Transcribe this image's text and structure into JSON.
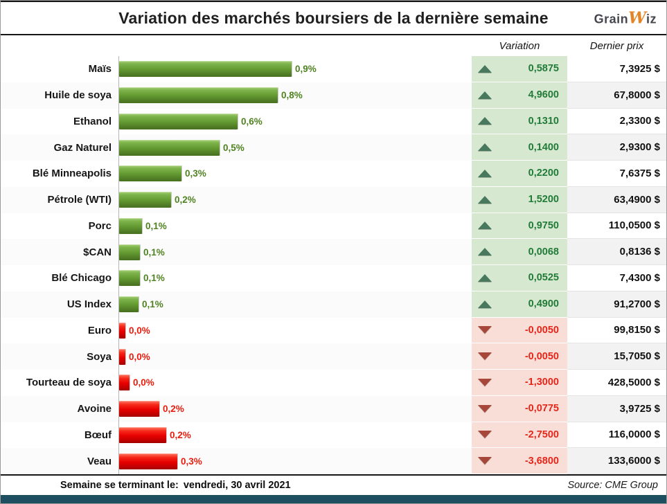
{
  "header": {
    "title": "Variation des marchés boursiers de la dernière semaine",
    "logo": {
      "part1": "Grain",
      "part2": "W",
      "part3": "iz"
    }
  },
  "columns": {
    "variation": "Variation",
    "price": "Dernier prix"
  },
  "rows": [
    {
      "label": "Maïs",
      "pct": "0,9%",
      "direction": "up",
      "bar_len": 8.6,
      "variation": "0,5875",
      "price": "7,3925 $"
    },
    {
      "label": "Huile de soya",
      "pct": "0,8%",
      "direction": "up",
      "bar_len": 7.9,
      "variation": "4,9600",
      "price": "67,8000 $"
    },
    {
      "label": "Ethanol",
      "pct": "0,6%",
      "direction": "up",
      "bar_len": 5.9,
      "variation": "0,1310",
      "price": "2,3300 $"
    },
    {
      "label": "Gaz Naturel",
      "pct": "0,5%",
      "direction": "up",
      "bar_len": 5.0,
      "variation": "0,1400",
      "price": "2,9300 $"
    },
    {
      "label": "Blé Minneapolis",
      "pct": "0,3%",
      "direction": "up",
      "bar_len": 3.1,
      "variation": "0,2200",
      "price": "7,6375 $"
    },
    {
      "label": "Pétrole (WTI)",
      "pct": "0,2%",
      "direction": "up",
      "bar_len": 2.6,
      "variation": "1,5200",
      "price": "63,4900 $"
    },
    {
      "label": "Porc",
      "pct": "0,1%",
      "direction": "up",
      "bar_len": 1.15,
      "variation": "0,9750",
      "price": "110,0500 $"
    },
    {
      "label": "$CAN",
      "pct": "0,1%",
      "direction": "up",
      "bar_len": 1.05,
      "variation": "0,0068",
      "price": "0,8136 $"
    },
    {
      "label": "Blé Chicago",
      "pct": "0,1%",
      "direction": "up",
      "bar_len": 1.05,
      "variation": "0,0525",
      "price": "7,4300 $"
    },
    {
      "label": "US Index",
      "pct": "0,1%",
      "direction": "up",
      "bar_len": 0.95,
      "variation": "0,4900",
      "price": "91,2700 $"
    },
    {
      "label": "Euro",
      "pct": "0,0%",
      "direction": "down",
      "bar_len": 0.3,
      "variation": "-0,0050",
      "price": "99,8150 $"
    },
    {
      "label": "Soya",
      "pct": "0,0%",
      "direction": "down",
      "bar_len": 0.3,
      "variation": "-0,0050",
      "price": "15,7050 $"
    },
    {
      "label": "Tourteau de soya",
      "pct": "0,0%",
      "direction": "down",
      "bar_len": 0.5,
      "variation": "-1,3000",
      "price": "428,5000 $"
    },
    {
      "label": "Avoine",
      "pct": "0,2%",
      "direction": "down",
      "bar_len": 2.0,
      "variation": "-0,0775",
      "price": "3,9725 $"
    },
    {
      "label": "Bœuf",
      "pct": "0,2%",
      "direction": "down",
      "bar_len": 2.35,
      "variation": "-2,7500",
      "price": "116,0000 $"
    },
    {
      "label": "Veau",
      "pct": "0,3%",
      "direction": "down",
      "bar_len": 2.9,
      "variation": "-3,6800",
      "price": "133,6000 $"
    }
  ],
  "footer": {
    "left_label": "Semaine se terminant le:",
    "left_value": "vendredi, 30 avril 2021",
    "source": "Source: CME Group"
  },
  "colors": {
    "positive_text": "#217a38",
    "negative_text": "#e3261a",
    "bar_up": "#669d33",
    "bar_down": "#e60000",
    "variation_bg_up": "#d6e9d0",
    "variation_bg_down": "#f9ded7",
    "triangle_up": "#48795e",
    "triangle_down": "#a6473a",
    "bottom_strip": "#1d4f60",
    "logo_orange": "#e58427"
  },
  "chart_data": {
    "type": "bar",
    "orientation": "horizontal",
    "title": "Variation des marchés boursiers de la dernière semaine",
    "categories": [
      "Maïs",
      "Huile de soya",
      "Ethanol",
      "Gaz Naturel",
      "Blé Minneapolis",
      "Pétrole (WTI)",
      "Porc",
      "$CAN",
      "Blé Chicago",
      "US Index",
      "Euro",
      "Soya",
      "Tourteau de soya",
      "Avoine",
      "Bœuf",
      "Veau"
    ],
    "bar_labels": [
      "0,9%",
      "0,8%",
      "0,6%",
      "0,5%",
      "0,3%",
      "0,2%",
      "0,1%",
      "0,1%",
      "0,1%",
      "0,1%",
      "0,0%",
      "0,0%",
      "0,0%",
      "0,2%",
      "0,2%",
      "0,3%"
    ],
    "bar_directions": [
      "up",
      "up",
      "up",
      "up",
      "up",
      "up",
      "up",
      "up",
      "up",
      "up",
      "down",
      "down",
      "down",
      "down",
      "down",
      "down"
    ],
    "series": [
      {
        "name": "Variation",
        "values": [
          0.5875,
          4.96,
          0.131,
          0.14,
          0.22,
          1.52,
          0.975,
          0.0068,
          0.0525,
          0.49,
          -0.005,
          -0.005,
          -1.3,
          -0.0775,
          -2.75,
          -3.68
        ]
      },
      {
        "name": "Dernier prix",
        "values": [
          7.3925,
          67.8,
          2.33,
          2.93,
          7.6375,
          63.49,
          110.05,
          0.8136,
          7.43,
          91.27,
          99.815,
          15.705,
          428.5,
          3.9725,
          116.0,
          133.6
        ]
      }
    ],
    "legend": false,
    "grid": false
  }
}
